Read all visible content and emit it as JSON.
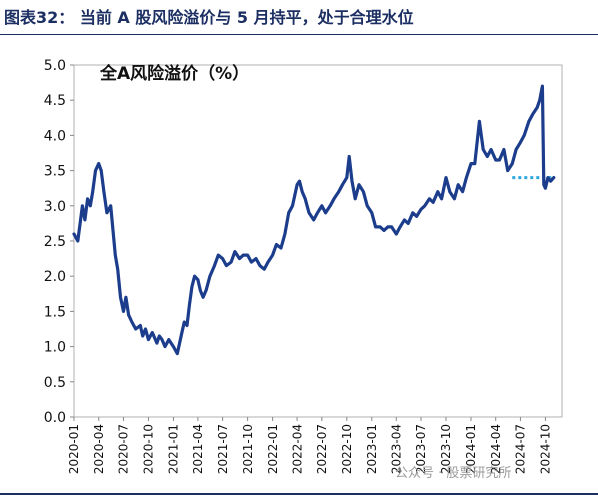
{
  "header": {
    "figure_title": "图表32： 当前 A 股风险溢价与 5 月持平，处于合理水位"
  },
  "watermark": "公众号 · 股票研究所",
  "chart_data": {
    "type": "line",
    "title": "全A风险溢价（%）",
    "xlabel": "",
    "ylabel": "",
    "ylim": [
      0.0,
      5.0
    ],
    "yticks": [
      "0.0",
      "0.5",
      "1.0",
      "1.5",
      "2.0",
      "2.5",
      "3.0",
      "3.5",
      "4.0",
      "4.5",
      "5.0"
    ],
    "xlim": [
      "2020-01",
      "2024-12"
    ],
    "xticks": [
      "2020-01",
      "2020-04",
      "2020-07",
      "2020-10",
      "2021-01",
      "2021-04",
      "2021-07",
      "2021-10",
      "2022-01",
      "2022-04",
      "2022-07",
      "2022-10",
      "2023-01",
      "2023-04",
      "2023-07",
      "2023-10",
      "2024-01",
      "2024-04",
      "2024-07",
      "2024-10"
    ],
    "grid": false,
    "legend": "none",
    "colors": {
      "series": "#1c3d8c",
      "reference": "#2ea7e0",
      "frame": "#b0b0b0"
    },
    "series": [
      {
        "x": [
          "2020-01-01",
          "2020-01-15",
          "2020-02-01",
          "2020-02-10",
          "2020-02-20",
          "2020-03-01",
          "2020-03-10",
          "2020-03-20",
          "2020-04-01",
          "2020-04-10",
          "2020-04-20",
          "2020-05-01",
          "2020-05-15",
          "2020-06-01",
          "2020-06-10",
          "2020-06-20",
          "2020-07-01",
          "2020-07-10",
          "2020-07-20",
          "2020-08-01",
          "2020-08-15",
          "2020-09-01",
          "2020-09-10",
          "2020-09-20",
          "2020-10-01",
          "2020-10-15",
          "2020-11-01",
          "2020-11-10",
          "2020-11-20",
          "2020-12-01",
          "2020-12-15",
          "2021-01-01",
          "2021-01-15",
          "2021-02-01",
          "2021-02-10",
          "2021-02-20",
          "2021-03-01",
          "2021-03-10",
          "2021-03-20",
          "2021-04-01",
          "2021-04-10",
          "2021-04-20",
          "2021-05-01",
          "2021-05-15",
          "2021-06-01",
          "2021-06-15",
          "2021-07-01",
          "2021-07-15",
          "2021-08-01",
          "2021-08-15",
          "2021-09-01",
          "2021-09-15",
          "2021-10-01",
          "2021-10-15",
          "2021-11-01",
          "2021-11-15",
          "2021-12-01",
          "2021-12-15",
          "2022-01-01",
          "2022-01-15",
          "2022-02-01",
          "2022-02-15",
          "2022-03-01",
          "2022-03-15",
          "2022-04-01",
          "2022-04-10",
          "2022-04-20",
          "2022-05-01",
          "2022-05-15",
          "2022-06-01",
          "2022-06-15",
          "2022-07-01",
          "2022-07-15",
          "2022-08-01",
          "2022-08-15",
          "2022-09-01",
          "2022-09-15",
          "2022-10-01",
          "2022-10-10",
          "2022-10-20",
          "2022-11-01",
          "2022-11-15",
          "2022-12-01",
          "2022-12-15",
          "2023-01-01",
          "2023-01-15",
          "2023-02-01",
          "2023-02-15",
          "2023-03-01",
          "2023-03-15",
          "2023-04-01",
          "2023-04-15",
          "2023-05-01",
          "2023-05-15",
          "2023-06-01",
          "2023-06-15",
          "2023-07-01",
          "2023-07-15",
          "2023-08-01",
          "2023-08-15",
          "2023-09-01",
          "2023-09-15",
          "2023-10-01",
          "2023-10-15",
          "2023-11-01",
          "2023-11-15",
          "2023-12-01",
          "2023-12-15",
          "2024-01-01",
          "2024-01-15",
          "2024-02-01",
          "2024-02-15",
          "2024-03-01",
          "2024-03-15",
          "2024-04-01",
          "2024-04-15",
          "2024-05-01",
          "2024-05-15",
          "2024-06-01",
          "2024-06-15",
          "2024-07-01",
          "2024-07-15",
          "2024-08-01",
          "2024-08-15",
          "2024-09-01",
          "2024-09-10",
          "2024-09-20",
          "2024-09-25",
          "2024-10-01",
          "2024-10-10",
          "2024-10-20",
          "2024-11-01"
        ],
        "y": [
          2.6,
          2.5,
          3.0,
          2.8,
          3.1,
          3.0,
          3.2,
          3.5,
          3.6,
          3.5,
          3.2,
          2.9,
          3.0,
          2.3,
          2.1,
          1.7,
          1.5,
          1.7,
          1.45,
          1.35,
          1.25,
          1.3,
          1.15,
          1.25,
          1.1,
          1.2,
          1.05,
          1.15,
          1.1,
          1.0,
          1.1,
          1.0,
          0.9,
          1.2,
          1.35,
          1.3,
          1.6,
          1.85,
          2.0,
          1.95,
          1.8,
          1.7,
          1.8,
          2.0,
          2.15,
          2.3,
          2.25,
          2.15,
          2.2,
          2.35,
          2.25,
          2.3,
          2.3,
          2.2,
          2.25,
          2.15,
          2.1,
          2.2,
          2.3,
          2.45,
          2.4,
          2.6,
          2.9,
          3.0,
          3.3,
          3.35,
          3.2,
          3.1,
          2.9,
          2.8,
          2.9,
          3.0,
          2.9,
          3.0,
          3.1,
          3.2,
          3.3,
          3.4,
          3.7,
          3.35,
          3.1,
          3.3,
          3.2,
          3.0,
          2.9,
          2.7,
          2.7,
          2.65,
          2.7,
          2.7,
          2.6,
          2.7,
          2.8,
          2.75,
          2.9,
          2.85,
          2.95,
          3.0,
          3.1,
          3.05,
          3.2,
          3.1,
          3.4,
          3.2,
          3.1,
          3.3,
          3.2,
          3.4,
          3.6,
          3.6,
          4.2,
          3.8,
          3.7,
          3.8,
          3.65,
          3.65,
          3.8,
          3.5,
          3.6,
          3.8,
          3.9,
          4.0,
          4.2,
          4.3,
          4.4,
          4.5,
          4.7,
          3.3,
          3.25,
          3.4,
          3.35,
          3.4
        ]
      }
    ],
    "reference_line": {
      "x": [
        "2024-06-01",
        "2024-11-01"
      ],
      "y": 3.4,
      "style": "dotted"
    }
  }
}
